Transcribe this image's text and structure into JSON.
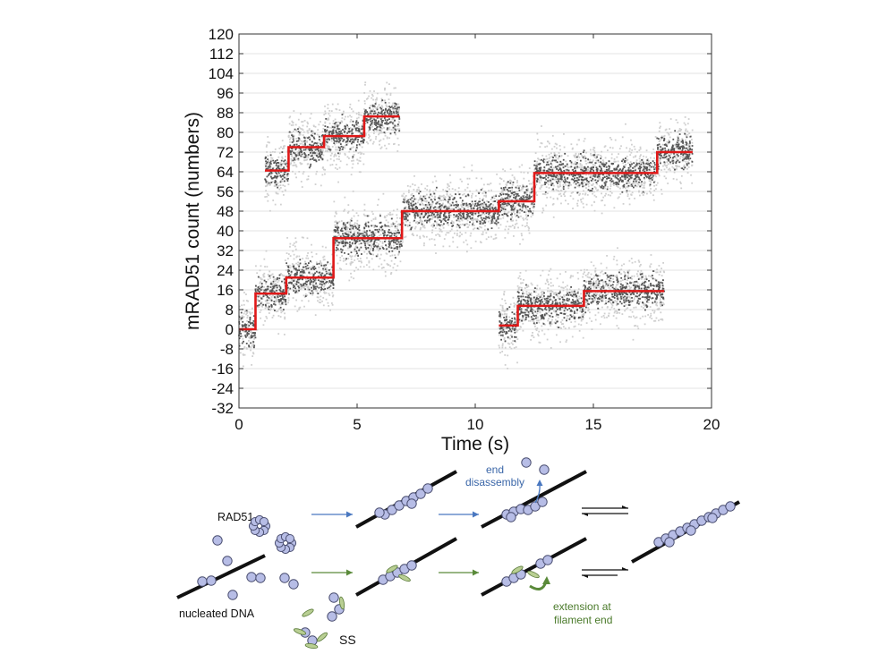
{
  "chart_data": {
    "type": "scatter",
    "xlabel": "Time (s)",
    "ylabel": "mRAD51 count (numbers)",
    "xlim": [
      0,
      20
    ],
    "ylim": [
      -32,
      120
    ],
    "x_ticks": [
      "0",
      "5",
      "10",
      "15",
      "20"
    ],
    "y_ticks": [
      "-32",
      "-24",
      "-16",
      "-8",
      "0",
      "8",
      "16",
      "24",
      "32",
      "40",
      "48",
      "56",
      "64",
      "72",
      "80",
      "88",
      "96",
      "104",
      "112",
      "120"
    ],
    "grid": "horizontal",
    "series": [
      {
        "name": "trace-1",
        "steps": [
          [
            0,
            0.7,
            0
          ],
          [
            0.7,
            2.0,
            14.5
          ],
          [
            2.0,
            3.7,
            21
          ],
          [
            3.7,
            4.0,
            21
          ],
          [
            4.0,
            6.9,
            37
          ],
          [
            6.9,
            11.0,
            48
          ],
          [
            11.0,
            12.5,
            52
          ],
          [
            12.5,
            17.7,
            63.5
          ],
          [
            17.7,
            19.2,
            72
          ]
        ]
      },
      {
        "name": "trace-2",
        "steps": [
          [
            1.1,
            2.1,
            64.5
          ],
          [
            2.1,
            3.6,
            74
          ],
          [
            3.6,
            5.3,
            78.5
          ],
          [
            5.3,
            6.8,
            86.5
          ]
        ]
      },
      {
        "name": "trace-3",
        "steps": [
          [
            11.0,
            11.8,
            1.5
          ],
          [
            11.8,
            14.6,
            9.5
          ],
          [
            14.6,
            18.0,
            15.5
          ]
        ]
      }
    ]
  },
  "schematic": {
    "rad51": "RAD51",
    "nucleated_dna": "nucleated DNA",
    "ss": "SS",
    "end_disassembly_1": "end",
    "end_disassembly_2": "disassembly",
    "extension_1": "extension at",
    "extension_2": "filament end"
  },
  "colors": {
    "fit": "#e01818",
    "raw_light": "#cfcfcf",
    "raw_dark": "#555555",
    "bead": "#b7bde6",
    "blue_arrow": "#4a78c0",
    "green_arrow": "#5a8a3a"
  }
}
